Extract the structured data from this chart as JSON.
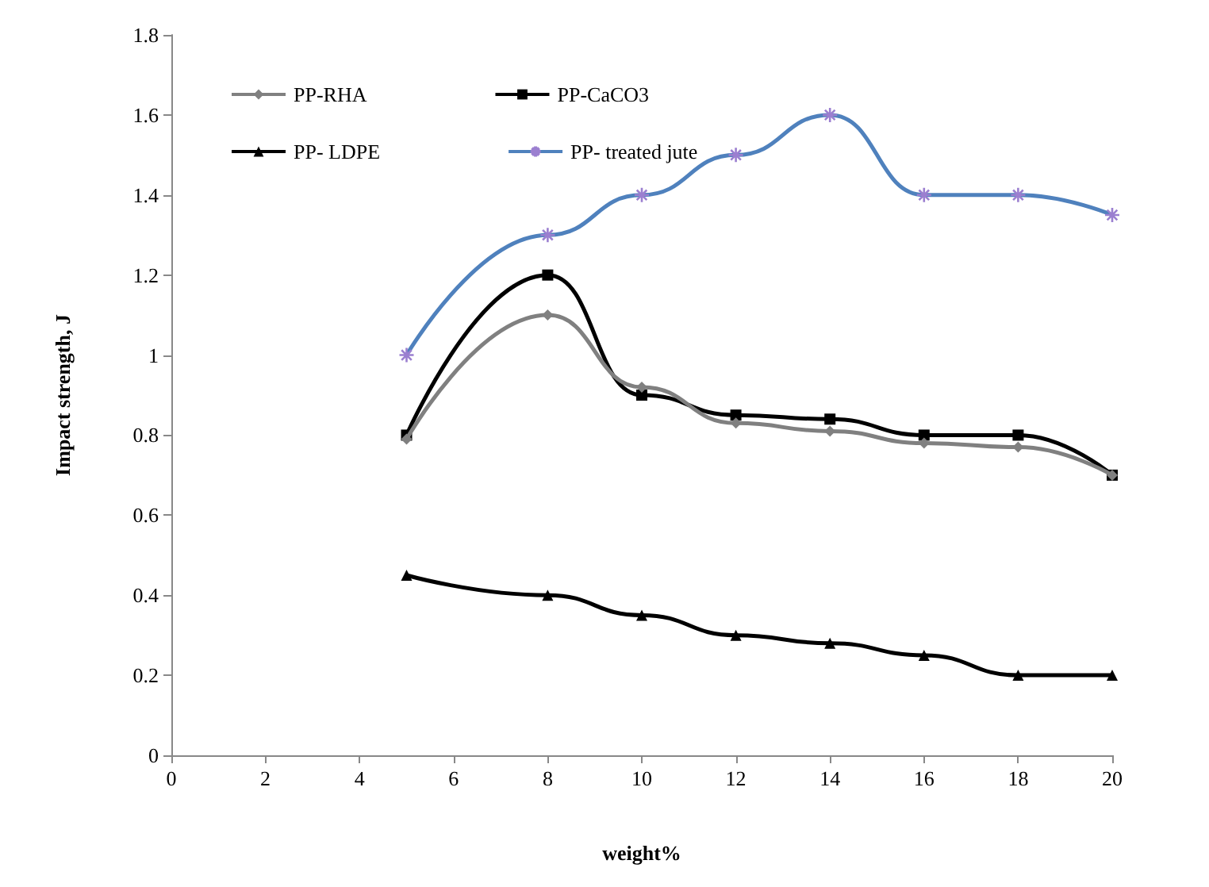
{
  "chart_data": {
    "type": "line",
    "xlabel": "weight%",
    "ylabel": "Impact strength, J",
    "x": [
      5,
      8,
      10,
      12,
      14,
      16,
      18,
      20
    ],
    "series": [
      {
        "name": "PP-RHA",
        "color": "#808080",
        "marker": "diamond",
        "values": [
          0.79,
          1.1,
          0.92,
          0.83,
          0.81,
          0.78,
          0.77,
          0.7
        ]
      },
      {
        "name": "PP-CaCO3",
        "color": "#000000",
        "marker": "square",
        "values": [
          0.8,
          1.2,
          0.9,
          0.85,
          0.84,
          0.8,
          0.8,
          0.7
        ]
      },
      {
        "name": "PP- LDPE",
        "color": "#000000",
        "marker": "triangle",
        "values": [
          0.45,
          0.4,
          0.35,
          0.3,
          0.28,
          0.25,
          0.2,
          0.2
        ]
      },
      {
        "name": "PP- treated jute",
        "color": "#4f81bd",
        "marker": "cross",
        "values": [
          1.0,
          1.3,
          1.4,
          1.5,
          1.6,
          1.4,
          1.4,
          1.35
        ]
      }
    ],
    "xlim": [
      0,
      20
    ],
    "xticks": [
      0,
      2,
      4,
      6,
      8,
      10,
      12,
      14,
      16,
      18,
      20
    ],
    "ylim": [
      0,
      1.8
    ],
    "yticks": [
      0,
      0.2,
      0.4,
      0.6,
      0.8,
      1,
      1.2,
      1.4,
      1.6,
      1.8
    ],
    "grid": false,
    "legend": "top left",
    "line_style": "solid"
  }
}
